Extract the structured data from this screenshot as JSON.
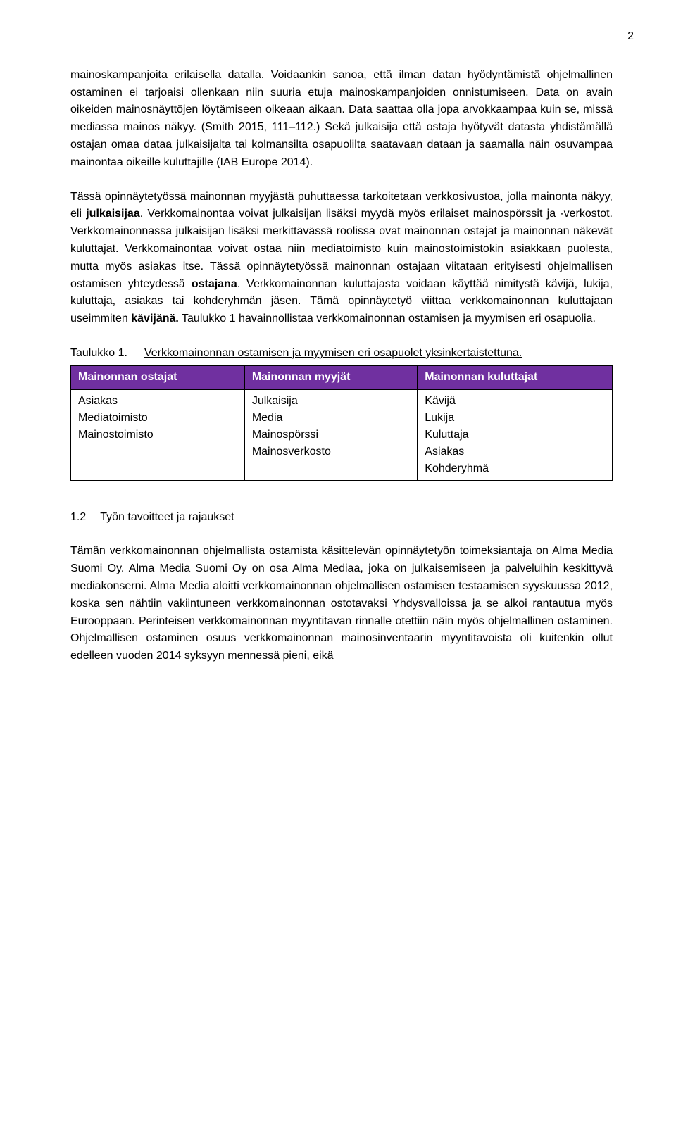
{
  "page_number": "2",
  "paragraphs": {
    "p1_a": "mainoskampanjoita erilaisella datalla. Voidaankin sanoa, että ilman datan hyödyntämistä ohjelmallinen ostaminen ei tarjoaisi ollenkaan niin suuria etuja mainoskampanjoiden onnistumiseen. Data on avain oikeiden mainosnäyttöjen löytämiseen oikeaan aikaan. Data saattaa olla jopa arvokkaampaa kuin se, missä mediassa mainos näkyy. (Smith 2015, 111–112.) Sekä julkaisija että ostaja hyötyvät datasta yhdistämällä ostajan omaa dataa julkaisijalta tai kolmansilta osapuolilta saatavaan dataan ja saamalla näin osuvampaa mainontaa oikeille kuluttajille (IAB Europe 2014).",
    "p2_a": "Tässä opinnäytetyössä mainonnan myyjästä puhuttaessa tarkoitetaan verkkosivustoa, jolla mainonta näkyy, eli ",
    "p2_b": "julkaisijaa",
    "p2_c": ". Verkkomainontaa voivat julkaisijan lisäksi myydä myös erilaiset mainospörssit ja -verkostot. Verkkomainonnassa julkaisijan lisäksi merkittävässä roolissa ovat mainonnan ostajat ja mainonnan näkevät kuluttajat. Verkkomainontaa voivat ostaa niin mediatoimisto kuin mainostoimistokin asiakkaan puolesta, mutta myös asiakas itse. Tässä opinnäytetyössä mainonnan ostajaan viitataan erityisesti ohjelmallisen ostamisen yhteydessä ",
    "p2_d": "ostajana",
    "p2_e": ". Verkkomainonnan kuluttajasta voidaan käyttää nimitystä kävijä, lukija, kuluttaja, asiakas tai kohderyhmän jäsen. Tämä opinnäytetyö viittaa verkkomainonnan kuluttajaan useimmiten ",
    "p2_f": "kävijänä.",
    "p2_g": " Taulukko 1 havainnollistaa verkkomainonnan ostamisen ja myymisen eri osapuolia.",
    "p3_a": "Tämän verkkomainonnan ohjelmallista ostamista käsittelevän opinnäytetyön toimeksiantaja on Alma Media Suomi Oy. Alma Media Suomi Oy on osa Alma Mediaa, joka on julkaisemiseen ja palveluihin keskittyvä mediakonserni. Alma Media aloitti verkkomainonnan ohjelmallisen ostamisen testaamisen syyskuussa 2012, koska sen nähtiin vakiintuneen verkkomainonnan ostotavaksi Yhdysvalloissa ja se alkoi rantautua myös Eurooppaan. Perinteisen verkkomainonnan myyntitavan rinnalle otettiin näin myös ohjelmallinen ostaminen. Ohjelmallisen ostaminen osuus verkkomainonnan mainosinventaarin myyntitavoista oli kuitenkin ollut edelleen vuoden 2014 syksyyn mennessä pieni, eikä"
  },
  "table": {
    "caption_label": "Taulukko 1.",
    "caption_text": "Verkkomainonnan ostamisen ja myymisen eri osapuolet yksinkertaistettuna.",
    "header_bg": "#7030a0",
    "header_fg": "#ffffff",
    "headers": [
      "Mainonnan ostajat",
      "Mainonnan myyjät",
      "Mainonnan kuluttajat"
    ],
    "col1": "Asiakas\nMediatoimisto\nMainostoimisto",
    "col2": "Julkaisija\nMedia\nMainospörssi\nMainosverkosto",
    "col3": "Kävijä\nLukija\nKuluttaja\nAsiakas\nKohderyhmä"
  },
  "section": {
    "number": "1.2",
    "title": "Työn tavoitteet ja rajaukset"
  }
}
